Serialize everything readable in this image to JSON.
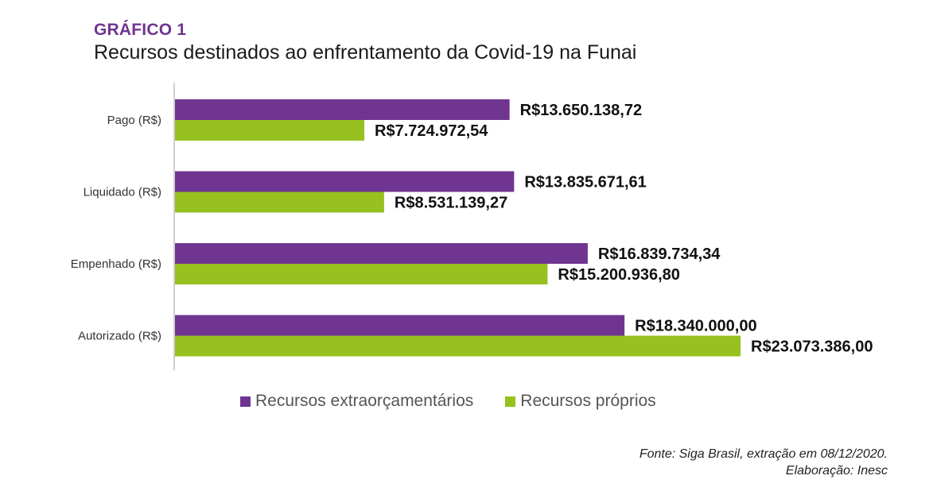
{
  "header": {
    "kicker": "GRÁFICO 1",
    "title": "Recursos destinados ao enfrentamento da Covid-19 na Funai"
  },
  "chart_data": {
    "type": "bar",
    "orientation": "horizontal",
    "title": "Recursos destinados ao enfrentamento da Covid-19 na Funai",
    "categories": [
      "Pago (R$)",
      "Liquidado (R$)",
      "Empenhado (R$)",
      "Autorizado (R$)"
    ],
    "series": [
      {
        "name": "Recursos extraorçamentários",
        "color": "#6f3590",
        "values": [
          13650138.72,
          13835671.61,
          16839734.34,
          18340000.0
        ],
        "labels": [
          "R$13.650.138,72",
          "R$13.835.671,61",
          "R$16.839.734,34",
          "R$18.340.000,00"
        ]
      },
      {
        "name": "Recursos próprios",
        "color": "#96c11f",
        "values": [
          7724972.54,
          8531139.27,
          15200936.8,
          23073386.0
        ],
        "labels": [
          "R$7.724.972,54",
          "R$8.531.139,27",
          "R$15.200.936,80",
          "R$23.073.386,00"
        ]
      }
    ],
    "xlim": [
      0,
      23073386
    ],
    "grid": false,
    "legend": "bottom-center"
  },
  "legend": {
    "items": [
      {
        "label": "Recursos extraorçamentários",
        "color": "#6f3590"
      },
      {
        "label": "Recursos próprios",
        "color": "#96c11f"
      }
    ]
  },
  "source": {
    "line1": "Fonte: Siga Brasil, extração em 08/12/2020.",
    "line2": "Elaboração: Inesc"
  }
}
